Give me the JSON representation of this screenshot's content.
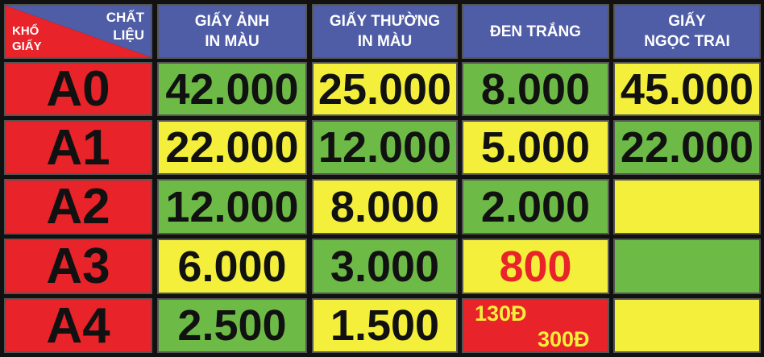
{
  "header": {
    "corner": {
      "top": [
        "CHẤT",
        "LIỆU"
      ],
      "bottom": [
        "KHỔ",
        "GIẤY"
      ]
    },
    "columns": [
      [
        "GIẤY ẢNH",
        "IN MÀU"
      ],
      [
        "GIẤY THƯỜNG",
        "IN MÀU"
      ],
      [
        "ĐEN TRẮNG"
      ],
      [
        "GIẤY",
        "NGỌC TRAI"
      ]
    ]
  },
  "table": {
    "rows": [
      {
        "label": "A0",
        "cells": [
          "42.000",
          "25.000",
          "8.000",
          "45.000"
        ]
      },
      {
        "label": "A1",
        "cells": [
          "22.000",
          "12.000",
          "5.000",
          "22.000"
        ]
      },
      {
        "label": "A2",
        "cells": [
          "12.000",
          "8.000",
          "2.000",
          null
        ]
      },
      {
        "label": "A3",
        "cells": [
          "6.000",
          "3.000",
          "800",
          null
        ]
      },
      {
        "label": "A4",
        "cells": [
          "2.500",
          "1.500",
          [
            "130Đ",
            "300Đ"
          ],
          null
        ]
      }
    ]
  }
}
